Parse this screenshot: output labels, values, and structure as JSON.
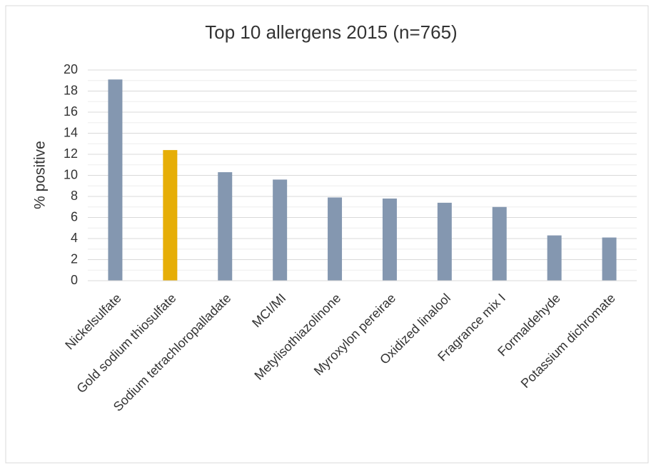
{
  "chart_data": {
    "type": "bar",
    "title": "Top 10 allergens 2015 (n=765)",
    "y_label": "% positive",
    "categories": [
      "Nickelsulfate",
      "Gold sodium thiosulfate",
      "Sodium tetrachloropalladate",
      "MCI/MI",
      "Metylisothiazolinone",
      "Myroxylon pereirae",
      "Oxidized linalool",
      "Fragrance mix I",
      "Formaldehyde",
      "Potassium dichromate"
    ],
    "values": [
      19.1,
      12.4,
      10.3,
      9.6,
      7.9,
      7.8,
      7.4,
      7.0,
      4.3,
      4.1
    ],
    "colors": [
      "#8497b0",
      "#e6ae07",
      "#8497b0",
      "#8497b0",
      "#8497b0",
      "#8497b0",
      "#8497b0",
      "#8497b0",
      "#8497b0",
      "#8497b0"
    ],
    "ylim": [
      0,
      20
    ],
    "yticks": [
      0,
      2,
      4,
      6,
      8,
      10,
      12,
      14,
      16,
      18,
      20
    ],
    "minor_yticks": [
      1,
      3,
      5,
      7,
      9,
      11,
      13,
      15,
      17,
      19
    ],
    "grid": true
  }
}
